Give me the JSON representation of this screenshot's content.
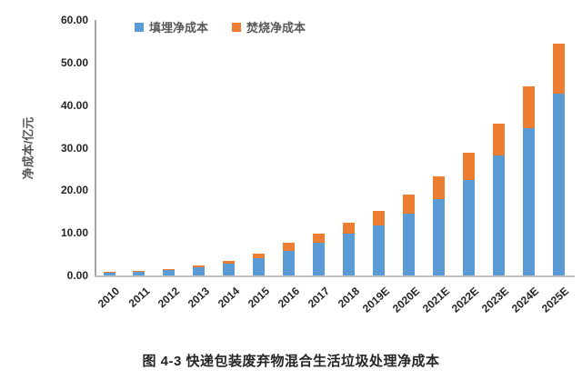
{
  "chart_data": {
    "type": "bar",
    "stacked": true,
    "title": "",
    "ylabel": "净成本/亿元",
    "xlabel": "",
    "ylim": [
      0,
      60
    ],
    "ytick_step": 10,
    "ytick_labels": [
      "0.00",
      "10.00",
      "20.00",
      "30.00",
      "40.00",
      "50.00",
      "60.00"
    ],
    "grid": false,
    "legend_position": "top-center",
    "categories": [
      "2010",
      "2011",
      "2012",
      "2013",
      "2014",
      "2015",
      "2016",
      "2017",
      "2018",
      "2019E",
      "2020E",
      "2021E",
      "2022E",
      "2023E",
      "2024E",
      "2025E"
    ],
    "series": [
      {
        "name": "填埋净成本",
        "color": "#5B9BD5",
        "values": [
          0.6,
          0.9,
          1.3,
          1.9,
          2.8,
          4.1,
          5.8,
          7.6,
          9.8,
          11.8,
          14.5,
          18.0,
          22.5,
          28.2,
          34.5,
          42.7
        ]
      },
      {
        "name": "焚烧净成本",
        "color": "#ED7D31",
        "values": [
          0.05,
          0.1,
          0.2,
          0.4,
          0.7,
          1.0,
          1.9,
          2.2,
          2.5,
          3.4,
          4.4,
          5.4,
          6.4,
          7.5,
          9.8,
          11.8
        ]
      }
    ],
    "caption": "图 4-3 快递包装废弃物混合生活垃圾处理净成本"
  },
  "colors": {
    "landfill": "#5B9BD5",
    "incineration": "#ED7D31",
    "axis_line": "#A6A6A6",
    "baseline": "#BFBFBF",
    "tick_text": "#262626",
    "secondary_text": "#595959",
    "background": "#FFFFFF"
  }
}
